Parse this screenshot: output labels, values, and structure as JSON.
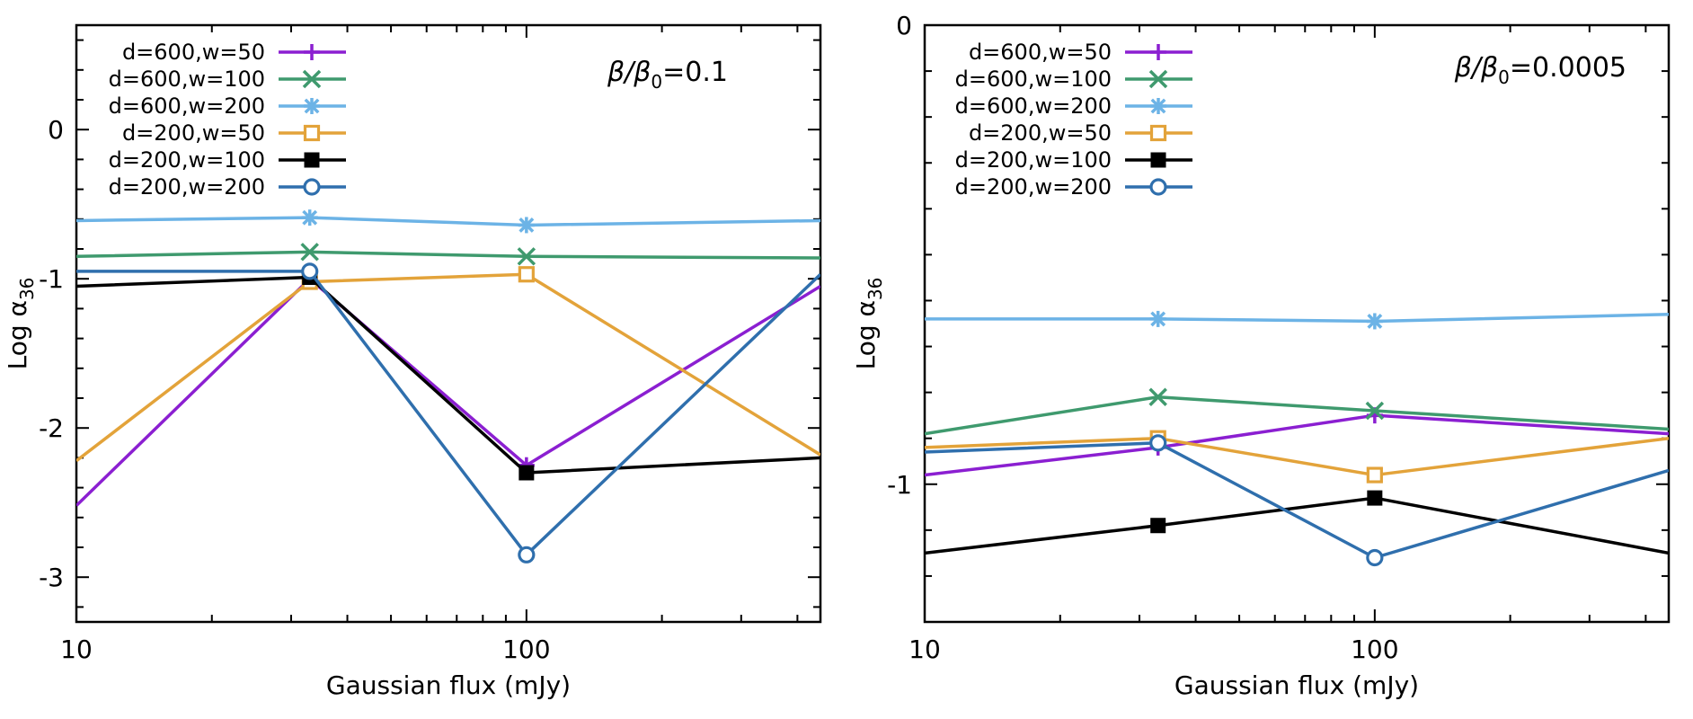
{
  "colors": {
    "purple": "#8b1fd1",
    "green": "#3f9a6e",
    "lightblue": "#6cb3e6",
    "orange": "#e3a33a",
    "black": "#000000",
    "blue": "#2f6fad"
  },
  "chart_data": [
    {
      "type": "line",
      "xscale": "log",
      "xlim": [
        10,
        450
      ],
      "ylim": [
        -3.3,
        0.7
      ],
      "x": [
        10,
        33,
        100,
        450
      ],
      "xticks": [
        "10",
        "100"
      ],
      "yticks": [
        "0",
        "-1",
        "-2",
        "-3"
      ],
      "xlabel": "Gaussian flux (mJy)",
      "ylabel": "Log α",
      "ylabel_sub": "36",
      "annotation": {
        "prefix": "β/β",
        "sub": "0",
        "suffix": "=0.1"
      },
      "series": [
        {
          "name": "d=600,w=50",
          "color_key": "purple",
          "marker": "plus",
          "values": [
            -2.52,
            -1.0,
            -2.25,
            -1.05
          ]
        },
        {
          "name": "d=600,w=100",
          "color_key": "green",
          "marker": "cross",
          "values": [
            -0.85,
            -0.82,
            -0.85,
            -0.86
          ]
        },
        {
          "name": "d=600,w=200",
          "color_key": "lightblue",
          "marker": "star",
          "values": [
            -0.61,
            -0.59,
            -0.64,
            -0.61
          ]
        },
        {
          "name": "d=200,w=50",
          "color_key": "orange",
          "marker": "open-square",
          "values": [
            -2.22,
            -1.02,
            -0.97,
            -2.18
          ]
        },
        {
          "name": "d=200,w=100",
          "color_key": "black",
          "marker": "filled-square",
          "values": [
            -1.05,
            -0.99,
            -2.3,
            -2.2
          ]
        },
        {
          "name": "d=200,w=200",
          "color_key": "blue",
          "marker": "open-circle",
          "values": [
            -0.95,
            -0.95,
            -2.85,
            -0.97
          ]
        }
      ]
    },
    {
      "type": "line",
      "xscale": "log",
      "xlim": [
        10,
        450
      ],
      "ylim": [
        -1.3,
        0.0
      ],
      "x": [
        10,
        33,
        100,
        450
      ],
      "xticks": [
        "10",
        "100"
      ],
      "yticks": [
        "0",
        "-1"
      ],
      "xlabel": "Gaussian flux (mJy)",
      "ylabel": "Log α",
      "ylabel_sub": "36",
      "annotation": {
        "prefix": "β/β",
        "sub": "0",
        "suffix": "=0.0005"
      },
      "series": [
        {
          "name": "d=600,w=50",
          "color_key": "purple",
          "marker": "plus",
          "values": [
            -0.98,
            -0.92,
            -0.85,
            -0.89
          ]
        },
        {
          "name": "d=600,w=100",
          "color_key": "green",
          "marker": "cross",
          "values": [
            -0.89,
            -0.81,
            -0.84,
            -0.88
          ]
        },
        {
          "name": "d=600,w=200",
          "color_key": "lightblue",
          "marker": "star",
          "values": [
            -0.64,
            -0.64,
            -0.645,
            -0.63
          ]
        },
        {
          "name": "d=200,w=50",
          "color_key": "orange",
          "marker": "open-square",
          "values": [
            -0.92,
            -0.9,
            -0.98,
            -0.9
          ]
        },
        {
          "name": "d=200,w=100",
          "color_key": "black",
          "marker": "filled-square",
          "values": [
            -1.15,
            -1.09,
            -1.03,
            -1.15
          ]
        },
        {
          "name": "d=200,w=200",
          "color_key": "blue",
          "marker": "open-circle",
          "values": [
            -0.93,
            -0.91,
            -1.16,
            -0.97
          ]
        }
      ]
    }
  ]
}
